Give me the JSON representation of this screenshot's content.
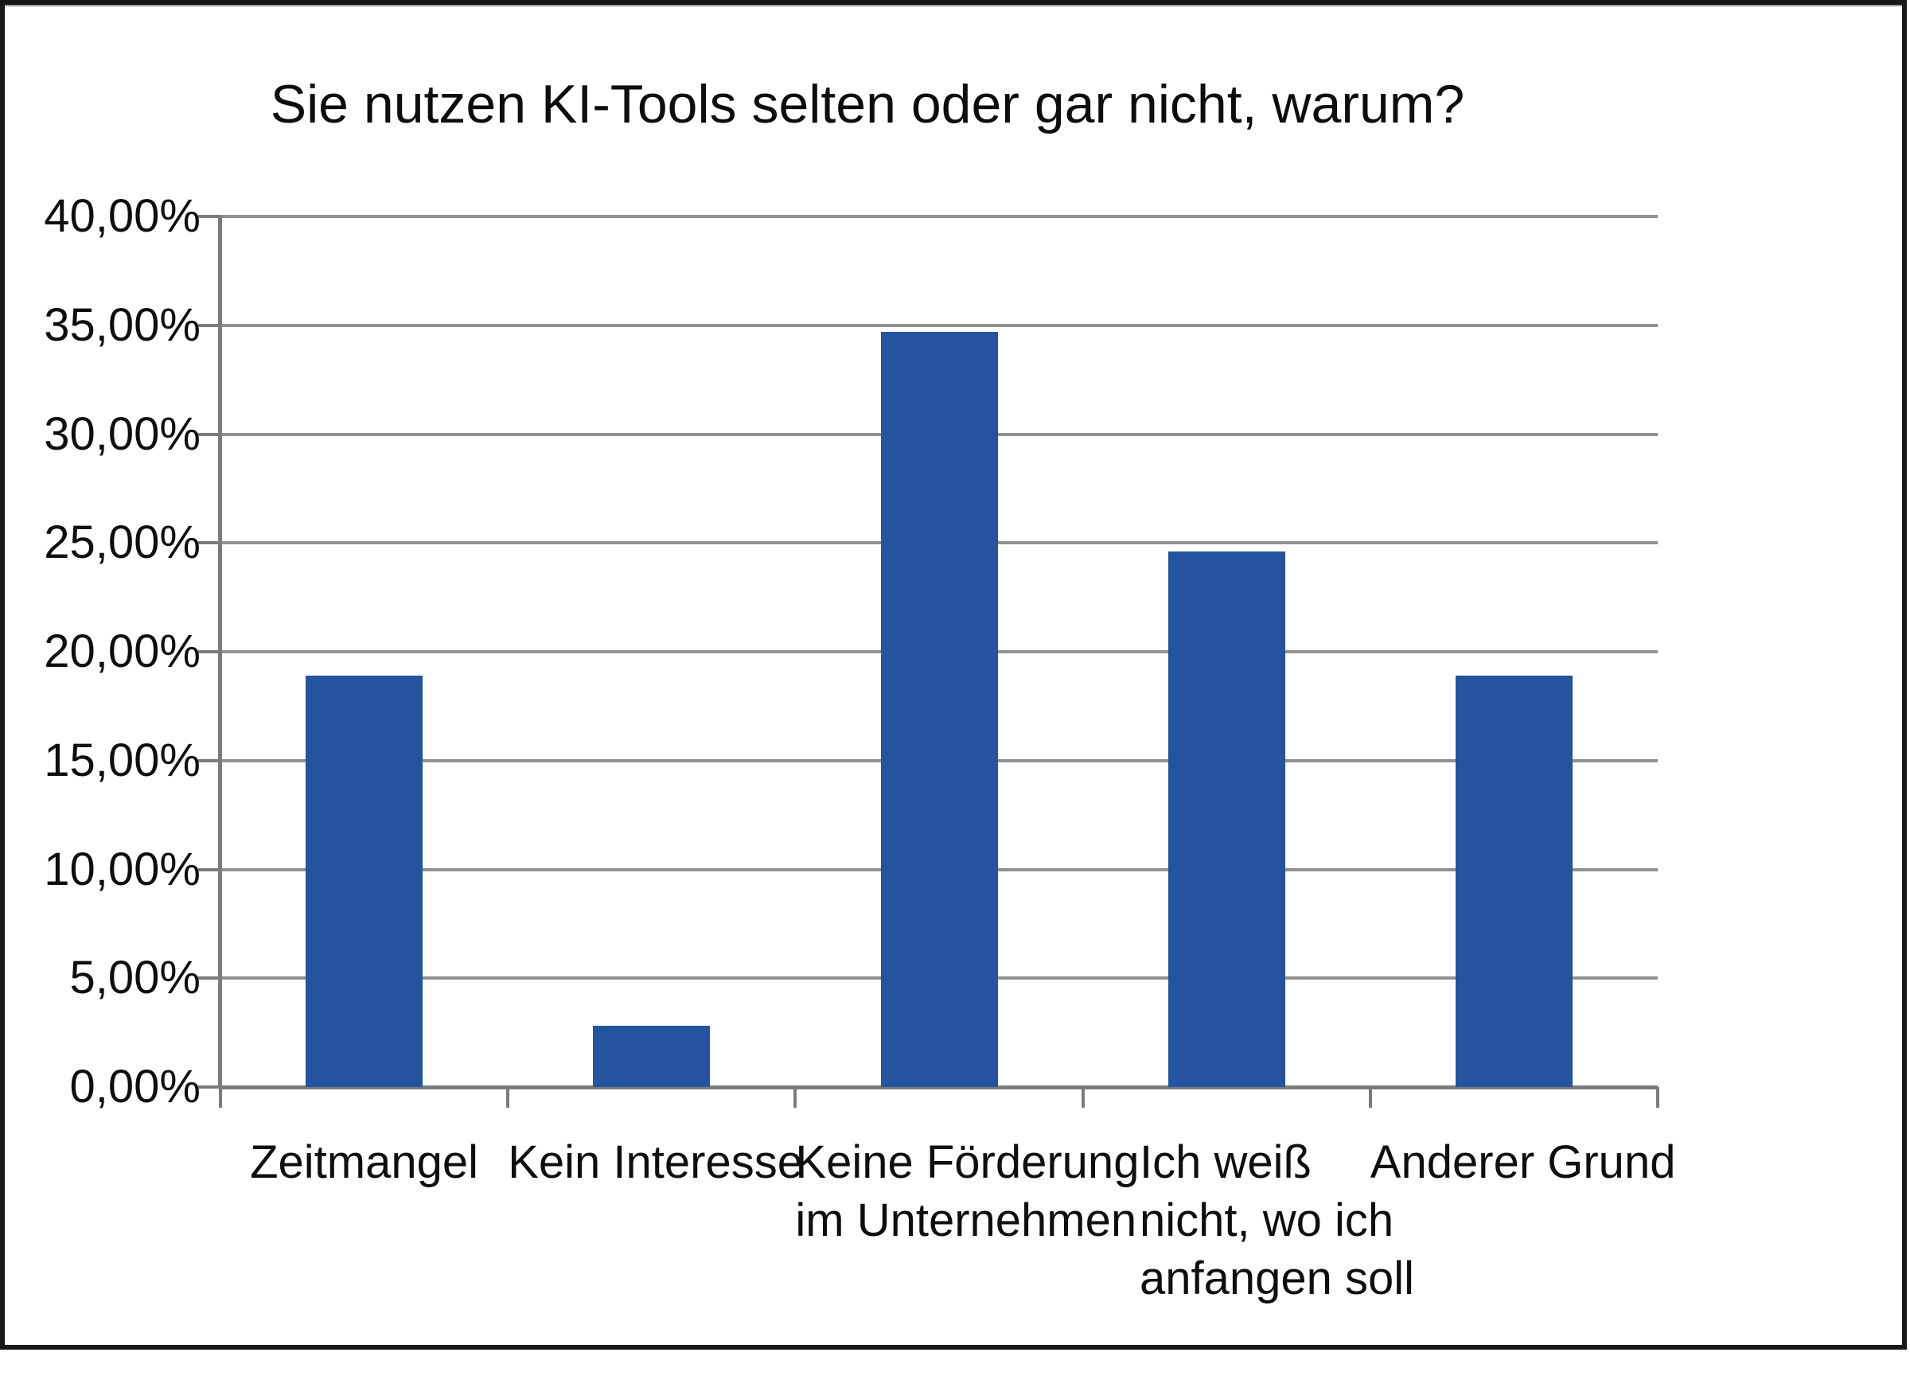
{
  "page": {
    "background_color": "#ffffff",
    "frame_color": "#171717"
  },
  "chart_data": {
    "type": "bar",
    "title": "Sie nutzen KI-Tools selten oder gar nicht, warum?",
    "categories": [
      "Zeitmangel",
      "Kein Interesse",
      "Keine Förderung im Unternehmen",
      "Ich weiß nicht, wo ich anfangen soll",
      "Anderer Grund"
    ],
    "category_label_lines": [
      [
        "Zeitmangel"
      ],
      [
        "Kein Interesse"
      ],
      [
        "Keine Förderung",
        "im Unternehmen"
      ],
      [
        "Ich weiß",
        "nicht, wo ich",
        "anfangen soll"
      ],
      [
        "Anderer Grund"
      ]
    ],
    "values": [
      18.9,
      2.8,
      34.7,
      24.6,
      18.9
    ],
    "unit": "percent",
    "xlabel": "",
    "ylabel": "",
    "ylim": [
      0,
      40
    ],
    "ytick_step": 5,
    "ytick_labels": [
      "0,00%",
      "5,00%",
      "10,00%",
      "15,00%",
      "20,00%",
      "25,00%",
      "30,00%",
      "35,00%",
      "40,00%"
    ],
    "grid": true,
    "legend": "none",
    "bar_color": "#24549F",
    "gridline_color": "#919191",
    "axis_color": "#7b7b7b",
    "text_color": "#0e0e0e"
  }
}
